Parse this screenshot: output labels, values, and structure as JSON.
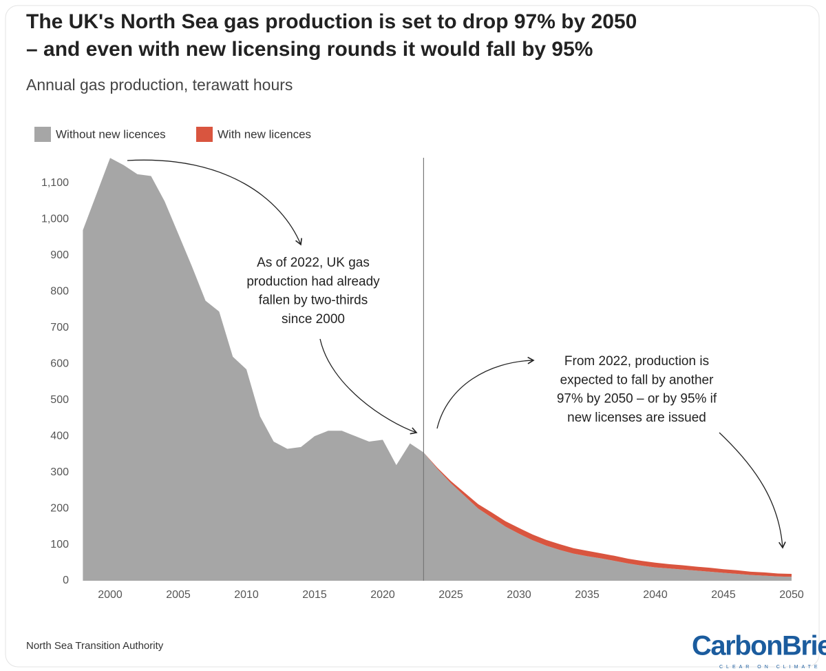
{
  "chart_data": {
    "type": "stacked-area",
    "title": [
      "The UK's North Sea gas production is set to drop 97% by 2050",
      "– and even with new licensing rounds it would fall by 95%"
    ],
    "subtitle": "Annual gas production, terawatt hours",
    "x": [
      1998,
      1999,
      2000,
      2001,
      2002,
      2003,
      2004,
      2005,
      2006,
      2007,
      2008,
      2009,
      2010,
      2011,
      2012,
      2013,
      2014,
      2015,
      2016,
      2017,
      2018,
      2019,
      2020,
      2021,
      2022,
      2023,
      2024,
      2025,
      2026,
      2027,
      2028,
      2029,
      2030,
      2031,
      2032,
      2033,
      2034,
      2035,
      2036,
      2037,
      2038,
      2039,
      2040,
      2041,
      2042,
      2043,
      2044,
      2045,
      2046,
      2047,
      2048,
      2049,
      2050
    ],
    "series": [
      {
        "name": "Without new licences",
        "color": "#a6a6a6",
        "values": [
          970,
          1070,
          1170,
          1150,
          1125,
          1120,
          1050,
          960,
          870,
          775,
          745,
          620,
          585,
          455,
          385,
          365,
          370,
          400,
          415,
          415,
          400,
          385,
          390,
          320,
          380,
          355,
          310,
          270,
          235,
          200,
          175,
          150,
          130,
          112,
          97,
          85,
          75,
          68,
          62,
          55,
          48,
          42,
          37,
          34,
          31,
          28,
          25,
          22,
          19,
          16,
          14,
          12,
          11
        ]
      },
      {
        "name": "With new licences",
        "color": "#d9553f",
        "values": [
          null,
          null,
          null,
          null,
          null,
          null,
          null,
          null,
          null,
          null,
          null,
          null,
          null,
          null,
          null,
          null,
          null,
          null,
          null,
          null,
          null,
          null,
          null,
          null,
          null,
          0,
          3,
          6,
          9,
          12,
          14,
          15,
          16,
          16,
          16,
          16,
          15,
          15,
          14,
          14,
          13,
          13,
          13,
          12,
          12,
          11,
          11,
          10,
          10,
          9,
          9,
          8,
          8
        ]
      }
    ],
    "xlim": [
      1998,
      2050
    ],
    "xticks": [
      2000,
      2005,
      2010,
      2015,
      2020,
      2025,
      2030,
      2035,
      2040,
      2045,
      2050
    ],
    "ylim": [
      0,
      1180
    ],
    "yticks": [
      0,
      100,
      200,
      300,
      400,
      500,
      600,
      700,
      800,
      900,
      {
        "value": 1000,
        "label": "1,000"
      },
      {
        "value": 1100,
        "label": "1,100"
      }
    ],
    "reference_x": 2023,
    "grid": false,
    "annotations": [
      {
        "lines": [
          "As of 2022, UK gas",
          "production had already",
          "fallen by two-thirds",
          "since 2000"
        ]
      },
      {
        "lines": [
          "From 2022, production is",
          "expected to fall by another",
          "97% by 2050 – or by 95% if",
          "new licenses are issued"
        ]
      }
    ],
    "source": "North Sea Transition Authority",
    "logo": "CarbonBrief",
    "tagline": "CLEAR ON CLIMATE"
  }
}
